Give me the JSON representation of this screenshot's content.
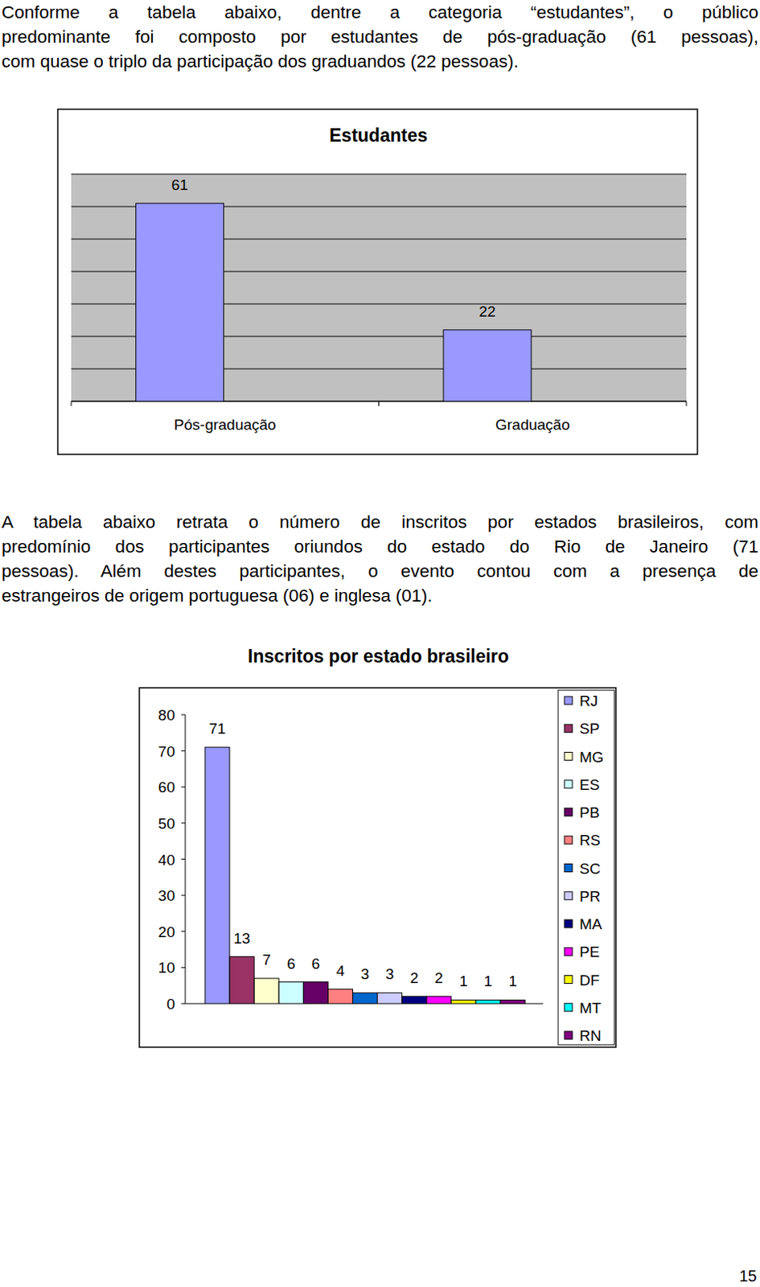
{
  "paragraphs": [
    [
      "Conforme a tabela abaixo, dentre a categoria “estudantes”, o público",
      "predominante foi composto por estudantes de pós-graduação (61 pessoas),",
      "com quase o triplo da participação dos graduandos (22 pessoas)."
    ],
    [
      "A tabela abaixo retrata o número de inscritos por estados brasileiros, com",
      "predomínio dos participantes oriundos do estado do Rio de Janeiro (71",
      "pessoas). Além destes participantes, o evento contou com a presença de",
      "estrangeiros de origem portuguesa (06) e inglesa (01)."
    ]
  ],
  "chart_data": [
    {
      "type": "bar",
      "title": "Estudantes",
      "categories": [
        "Pós-graduação",
        "Graduação"
      ],
      "values": [
        61,
        22
      ],
      "color": "#9999ff",
      "ylim": [
        0,
        70
      ],
      "yticks": [
        0,
        10,
        20,
        30,
        40,
        50,
        60,
        70
      ],
      "grid": true,
      "data_labels": true,
      "tick_labels": "x"
    },
    {
      "type": "bar",
      "title": "Inscritos por estado brasileiro",
      "categories": [
        "RJ",
        "SP",
        "MG",
        "ES",
        "PB",
        "RS",
        "SC",
        "PR",
        "MA",
        "PE",
        "DF",
        "MT",
        "RN"
      ],
      "values": [
        71,
        13,
        7,
        6,
        6,
        4,
        3,
        3,
        2,
        2,
        1,
        1,
        1
      ],
      "colors": [
        "#9999ff",
        "#993366",
        "#ffffcc",
        "#ccffff",
        "#660066",
        "#ff8080",
        "#0066cc",
        "#ccccff",
        "#000080",
        "#ff00ff",
        "#ffff00",
        "#00ffff",
        "#800080"
      ],
      "ylim": [
        0,
        80
      ],
      "yticks": [
        0,
        10,
        20,
        30,
        40,
        50,
        60,
        70,
        80
      ],
      "grid": false,
      "legend": "right",
      "data_labels": true,
      "tick_labels": "y"
    }
  ],
  "page_number": "15"
}
